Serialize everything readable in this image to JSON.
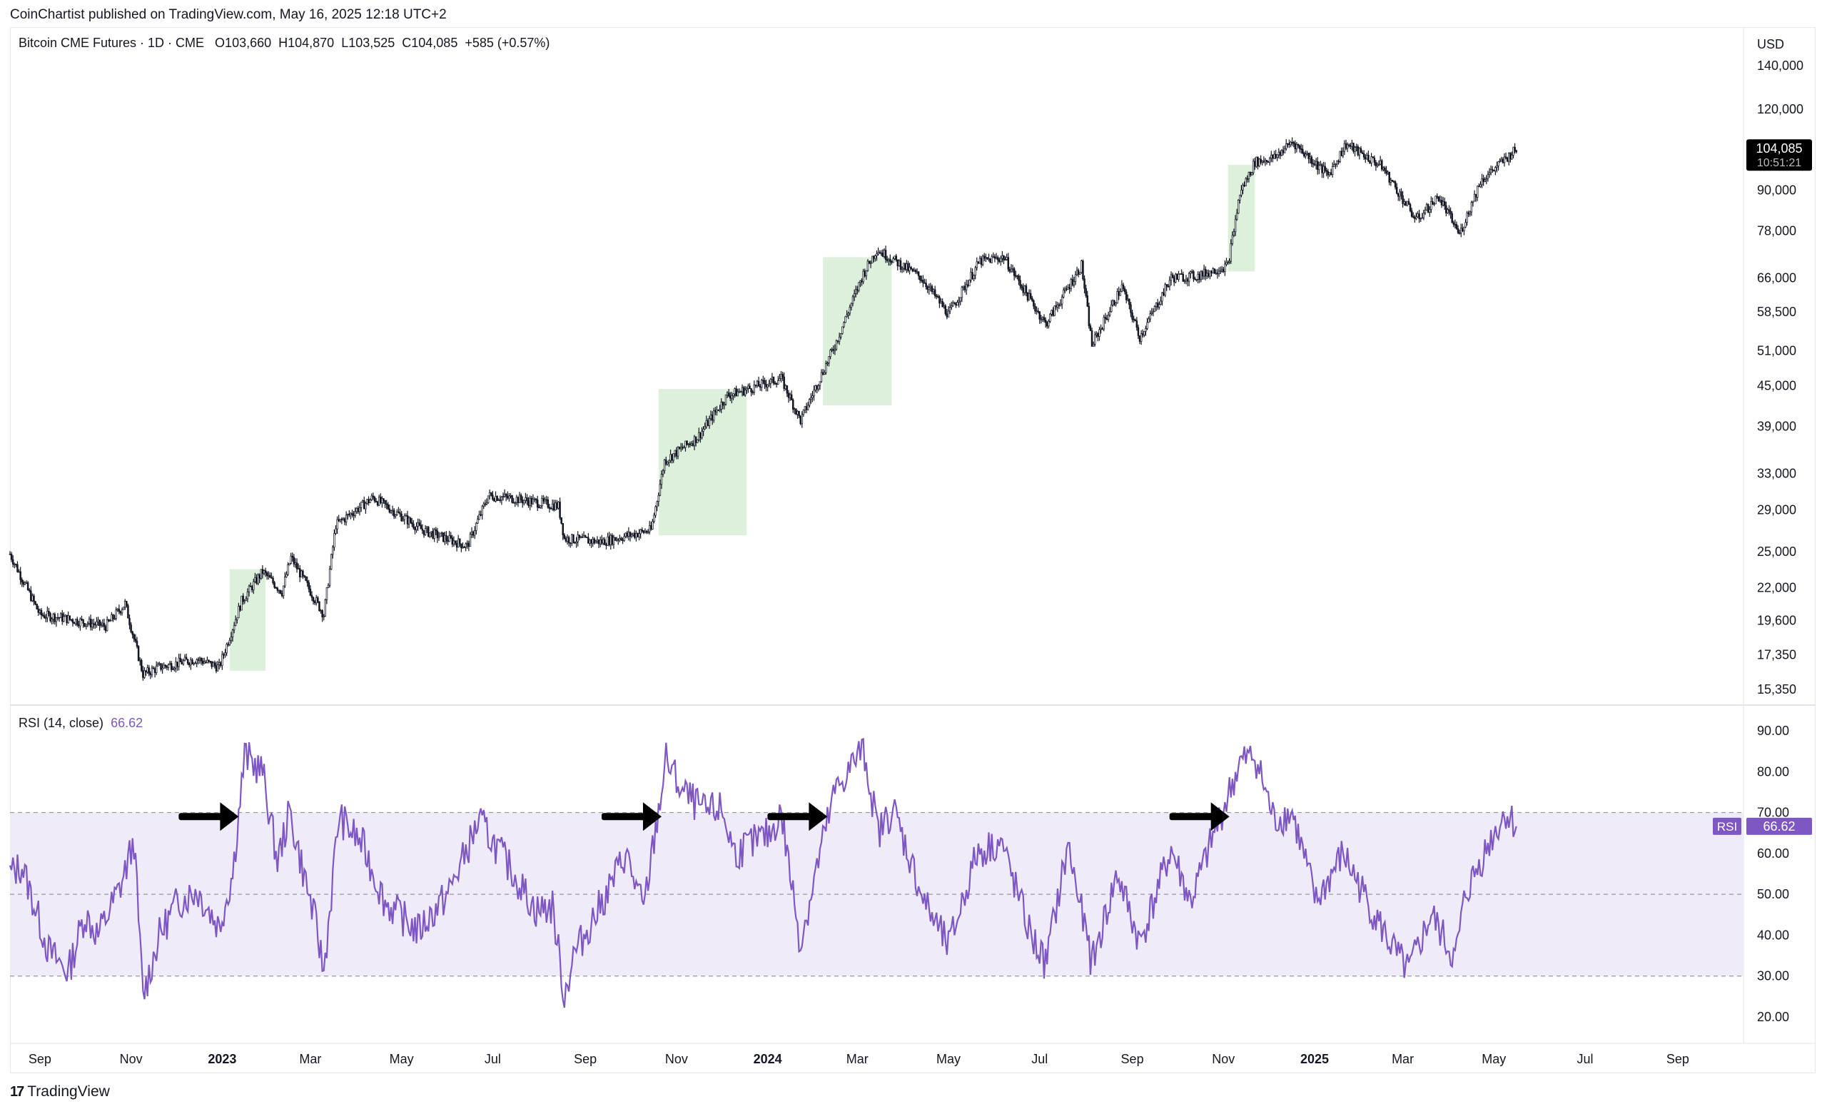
{
  "header": {
    "published": "CoinChartist published on TradingView.com, May 16, 2025 12:18 UTC+2"
  },
  "price_legend": "Bitcoin CME Futures · 1D · CME   O103,660  H104,870  L103,525  C104,085  +585 (+0.57%)",
  "currency": "USD",
  "price_badge": {
    "value": "104,085",
    "countdown": "10:51:21"
  },
  "rsi_legend": {
    "label": "RSI (14, close)",
    "value": "66.62"
  },
  "rsi_badge": {
    "label": "RSI",
    "value": "66.62"
  },
  "footer": {
    "brand": "TradingView",
    "logo_glyph": "17"
  },
  "colors": {
    "candles": "#131722",
    "highlight": "#dcf0dc",
    "rsi_line": "#7e57c2",
    "rsi_band": "#efebf8",
    "badge_bg": "#000000"
  },
  "icons": [
    "tradingview-logo-icon",
    "arrow-right-icon"
  ],
  "chart_data": [
    {
      "type": "candlestick",
      "title": "Bitcoin CME Futures",
      "interval": "1D",
      "scale": "log",
      "ylim": [
        15350,
        140000
      ],
      "y_ticks": [
        "140,000",
        "120,000",
        "104,085",
        "90,000",
        "78,000",
        "66,000",
        "58,500",
        "51,000",
        "45,000",
        "39,000",
        "33,000",
        "29,000",
        "25,000",
        "22,000",
        "19,600",
        "17,350",
        "15,350"
      ],
      "x_ticks": [
        "Sep",
        "Nov",
        "2023",
        "Mar",
        "May",
        "Jul",
        "Sep",
        "Nov",
        "2024",
        "Mar",
        "May",
        "Jul",
        "Sep",
        "Nov",
        "2025",
        "Mar",
        "May",
        "Jul",
        "Sep"
      ],
      "xlim": [
        "2022-08-12",
        "2025-10-15"
      ],
      "close_path": [
        [
          "2022-08-12",
          24800
        ],
        [
          "2022-09-01",
          20000
        ],
        [
          "2022-09-15",
          19800
        ],
        [
          "2022-10-15",
          19200
        ],
        [
          "2022-10-28",
          20800
        ],
        [
          "2022-11-09",
          16200
        ],
        [
          "2022-11-20",
          16600
        ],
        [
          "2022-12-15",
          17100
        ],
        [
          "2022-12-30",
          16600
        ],
        [
          "2023-01-14",
          21000
        ],
        [
          "2023-01-28",
          23300
        ],
        [
          "2023-02-10",
          21700
        ],
        [
          "2023-02-16",
          24500
        ],
        [
          "2023-03-10",
          20000
        ],
        [
          "2023-03-18",
          27500
        ],
        [
          "2023-04-12",
          30300
        ],
        [
          "2023-05-15",
          27000
        ],
        [
          "2023-06-14",
          25500
        ],
        [
          "2023-06-28",
          30500
        ],
        [
          "2023-07-15",
          30200
        ],
        [
          "2023-08-14",
          29400
        ],
        [
          "2023-08-18",
          26200
        ],
        [
          "2023-09-12",
          25900
        ],
        [
          "2023-10-15",
          27000
        ],
        [
          "2023-10-24",
          34500
        ],
        [
          "2023-11-15",
          37500
        ],
        [
          "2023-12-05",
          43500
        ],
        [
          "2024-01-10",
          46200
        ],
        [
          "2024-01-23",
          39800
        ],
        [
          "2024-02-15",
          52000
        ],
        [
          "2024-03-05",
          67000
        ],
        [
          "2024-03-14",
          73000
        ],
        [
          "2024-04-13",
          66000
        ],
        [
          "2024-05-01",
          58000
        ],
        [
          "2024-05-22",
          70000
        ],
        [
          "2024-06-07",
          71000
        ],
        [
          "2024-07-05",
          56000
        ],
        [
          "2024-07-29",
          69000
        ],
        [
          "2024-08-05",
          52000
        ],
        [
          "2024-08-25",
          64000
        ],
        [
          "2024-09-06",
          53500
        ],
        [
          "2024-09-27",
          66000
        ],
        [
          "2024-10-15",
          66500
        ],
        [
          "2024-11-04",
          69000
        ],
        [
          "2024-11-12",
          89000
        ],
        [
          "2024-11-22",
          99500
        ],
        [
          "2024-12-05",
          101000
        ],
        [
          "2024-12-17",
          107000
        ],
        [
          "2025-01-10",
          95000
        ],
        [
          "2025-01-22",
          106000
        ],
        [
          "2025-02-15",
          98000
        ],
        [
          "2025-03-10",
          81000
        ],
        [
          "2025-03-25",
          88000
        ],
        [
          "2025-04-08",
          77000
        ],
        [
          "2025-04-22",
          93000
        ],
        [
          "2025-05-16",
          104085
        ]
      ],
      "highlight_zones": [
        {
          "from": "2023-01-06",
          "to": "2023-01-30",
          "low": 16400,
          "high": 23500
        },
        {
          "from": "2023-10-20",
          "to": "2023-12-18",
          "low": 26500,
          "high": 44500
        },
        {
          "from": "2024-02-07",
          "to": "2024-03-24",
          "low": 42000,
          "high": 71000
        },
        {
          "from": "2024-11-04",
          "to": "2024-11-22",
          "low": 67500,
          "high": 98500
        }
      ]
    },
    {
      "type": "line",
      "title": "RSI (14, close)",
      "ylim": [
        16,
        94
      ],
      "y_ticks": [
        "90.00",
        "80.00",
        "70.00",
        "60.00",
        "50.00",
        "40.00",
        "30.00",
        "20.00"
      ],
      "levels": [
        70,
        50,
        30
      ],
      "band": [
        30,
        70
      ],
      "series": [
        {
          "name": "RSI",
          "points": [
            [
              "2022-08-12",
              55
            ],
            [
              "2022-08-20",
              57
            ],
            [
              "2022-09-07",
              36
            ],
            [
              "2022-09-20",
              31
            ],
            [
              "2022-10-01",
              45
            ],
            [
              "2022-10-10",
              40
            ],
            [
              "2022-10-25",
              52
            ],
            [
              "2022-11-03",
              63
            ],
            [
              "2022-11-09",
              25
            ],
            [
              "2022-11-20",
              40
            ],
            [
              "2022-12-02",
              48
            ],
            [
              "2022-12-15",
              51
            ],
            [
              "2022-12-30",
              42
            ],
            [
              "2023-01-08",
              55
            ],
            [
              "2023-01-16",
              84
            ],
            [
              "2023-01-28",
              80
            ],
            [
              "2023-02-07",
              58
            ],
            [
              "2023-02-15",
              70
            ],
            [
              "2023-03-05",
              42
            ],
            [
              "2023-03-10",
              31
            ],
            [
              "2023-03-20",
              69
            ],
            [
              "2023-04-05",
              62
            ],
            [
              "2023-04-20",
              48
            ],
            [
              "2023-05-12",
              41
            ],
            [
              "2023-06-01",
              50
            ],
            [
              "2023-06-22",
              68
            ],
            [
              "2023-07-10",
              58
            ],
            [
              "2023-07-30",
              46
            ],
            [
              "2023-08-10",
              47
            ],
            [
              "2023-08-18",
              25
            ],
            [
              "2023-08-24",
              35
            ],
            [
              "2023-09-15",
              50
            ],
            [
              "2023-09-28",
              60
            ],
            [
              "2023-10-10",
              46
            ],
            [
              "2023-10-25",
              83
            ],
            [
              "2023-11-05",
              75
            ],
            [
              "2023-11-20",
              70
            ],
            [
              "2023-12-01",
              71
            ],
            [
              "2023-12-10",
              60
            ],
            [
              "2024-01-03",
              65
            ],
            [
              "2024-01-10",
              70
            ],
            [
              "2024-01-23",
              38
            ],
            [
              "2024-02-05",
              60
            ],
            [
              "2024-02-15",
              75
            ],
            [
              "2024-03-05",
              86
            ],
            [
              "2024-03-15",
              65
            ],
            [
              "2024-03-25",
              71
            ],
            [
              "2024-04-15",
              48
            ],
            [
              "2024-05-01",
              37
            ],
            [
              "2024-05-20",
              60
            ],
            [
              "2024-06-05",
              63
            ],
            [
              "2024-06-25",
              40
            ],
            [
              "2024-07-05",
              33
            ],
            [
              "2024-07-20",
              62
            ],
            [
              "2024-08-05",
              33
            ],
            [
              "2024-08-22",
              55
            ],
            [
              "2024-09-06",
              38
            ],
            [
              "2024-09-27",
              61
            ],
            [
              "2024-10-10",
              48
            ],
            [
              "2024-10-28",
              67
            ],
            [
              "2024-11-12",
              82
            ],
            [
              "2024-11-22",
              84
            ],
            [
              "2024-12-05",
              68
            ],
            [
              "2024-12-17",
              70
            ],
            [
              "2025-01-02",
              48
            ],
            [
              "2025-01-20",
              60
            ],
            [
              "2025-02-10",
              45
            ],
            [
              "2025-02-25",
              35
            ],
            [
              "2025-03-05",
              31
            ],
            [
              "2025-03-20",
              45
            ],
            [
              "2025-04-05",
              34
            ],
            [
              "2025-04-12",
              50
            ],
            [
              "2025-04-22",
              58
            ],
            [
              "2025-05-01",
              65
            ],
            [
              "2025-05-09",
              70
            ],
            [
              "2025-05-16",
              66.62
            ]
          ]
        }
      ],
      "annotation_arrows": [
        "2023-01-12",
        "2023-10-22",
        "2024-02-10",
        "2024-11-05"
      ]
    }
  ]
}
